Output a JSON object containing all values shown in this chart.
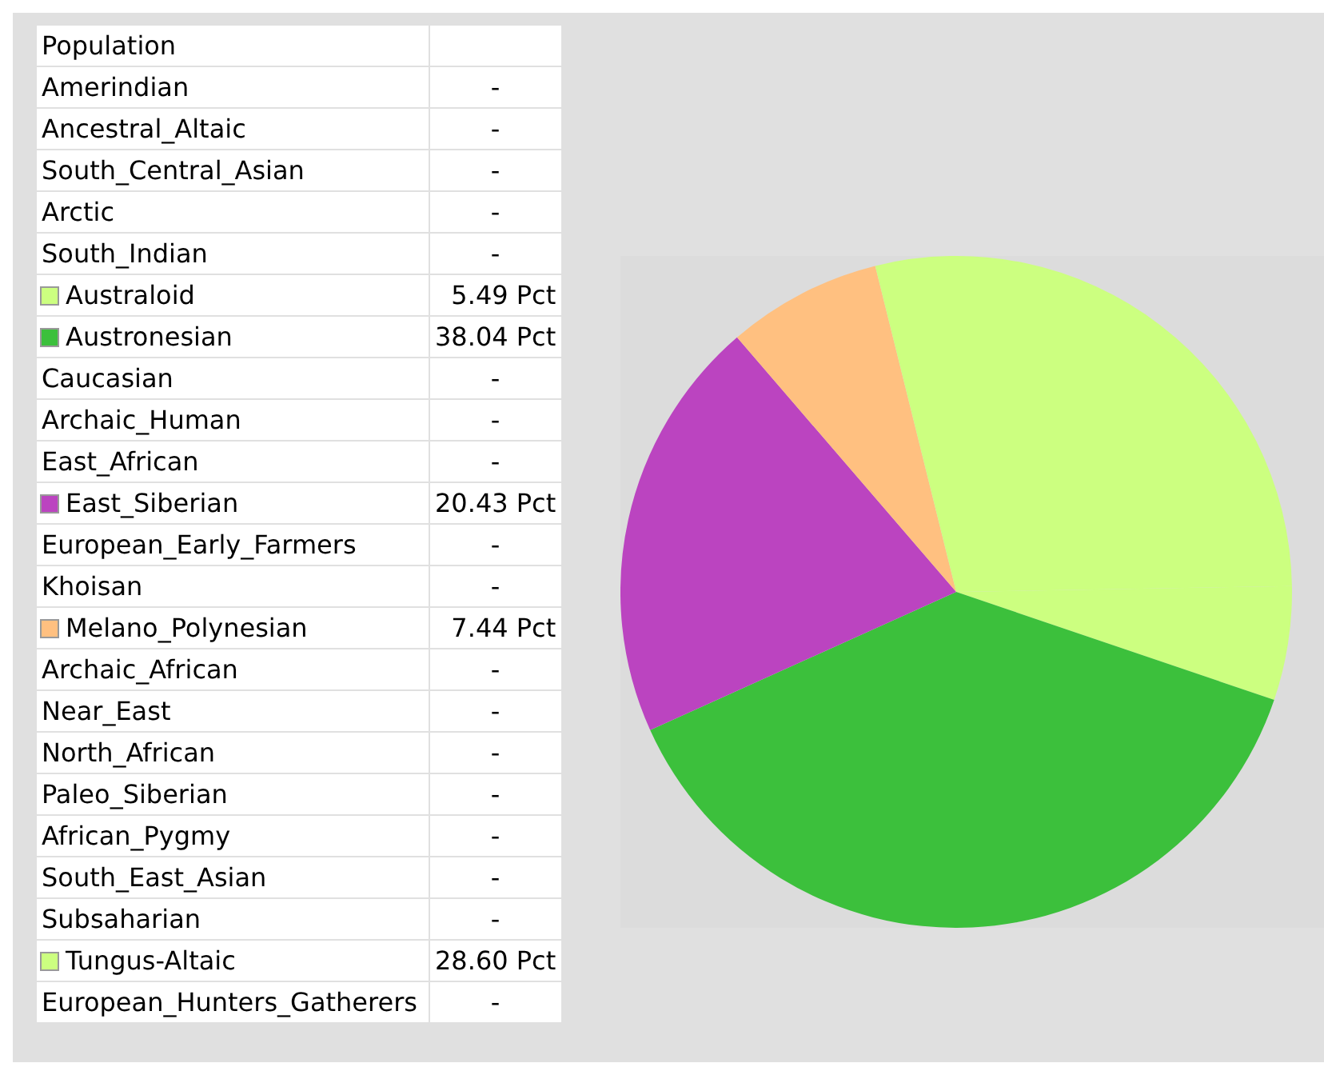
{
  "chart_data": {
    "type": "pie",
    "legend_title": "Population",
    "categories": [
      "Amerindian",
      "Ancestral_Altaic",
      "South_Central_Asian",
      "Arctic",
      "South_Indian",
      "Australoid",
      "Austronesian",
      "Caucasian",
      "Archaic_Human",
      "East_African",
      "East_Siberian",
      "European_Early_Farmers",
      "Khoisan",
      "Melano_Polynesian",
      "Archaic_African",
      "Near_East",
      "North_African",
      "Paleo_Siberian",
      "African_Pygmy",
      "South_East_Asian",
      "Subsaharian",
      "Tungus-Altaic",
      "European_Hunters_Gatherers"
    ],
    "values": [
      null,
      null,
      null,
      null,
      null,
      5.49,
      38.04,
      null,
      null,
      null,
      20.43,
      null,
      null,
      7.44,
      null,
      null,
      null,
      null,
      null,
      null,
      null,
      28.6,
      null
    ],
    "value_labels": [
      "-",
      "-",
      "-",
      "-",
      "-",
      "5.49 Pct",
      "38.04 Pct",
      "-",
      "-",
      "-",
      "20.43 Pct",
      "-",
      "-",
      "7.44 Pct",
      "-",
      "-",
      "-",
      "-",
      "-",
      "-",
      "-",
      "28.60 Pct",
      "-"
    ],
    "colors": [
      null,
      null,
      null,
      null,
      null,
      "#ccff80",
      "#3cc03c",
      null,
      null,
      null,
      "#bb44c0",
      null,
      null,
      "#ffc080",
      null,
      null,
      null,
      null,
      null,
      null,
      null,
      "#ccff80",
      null
    ],
    "legend": "left"
  }
}
